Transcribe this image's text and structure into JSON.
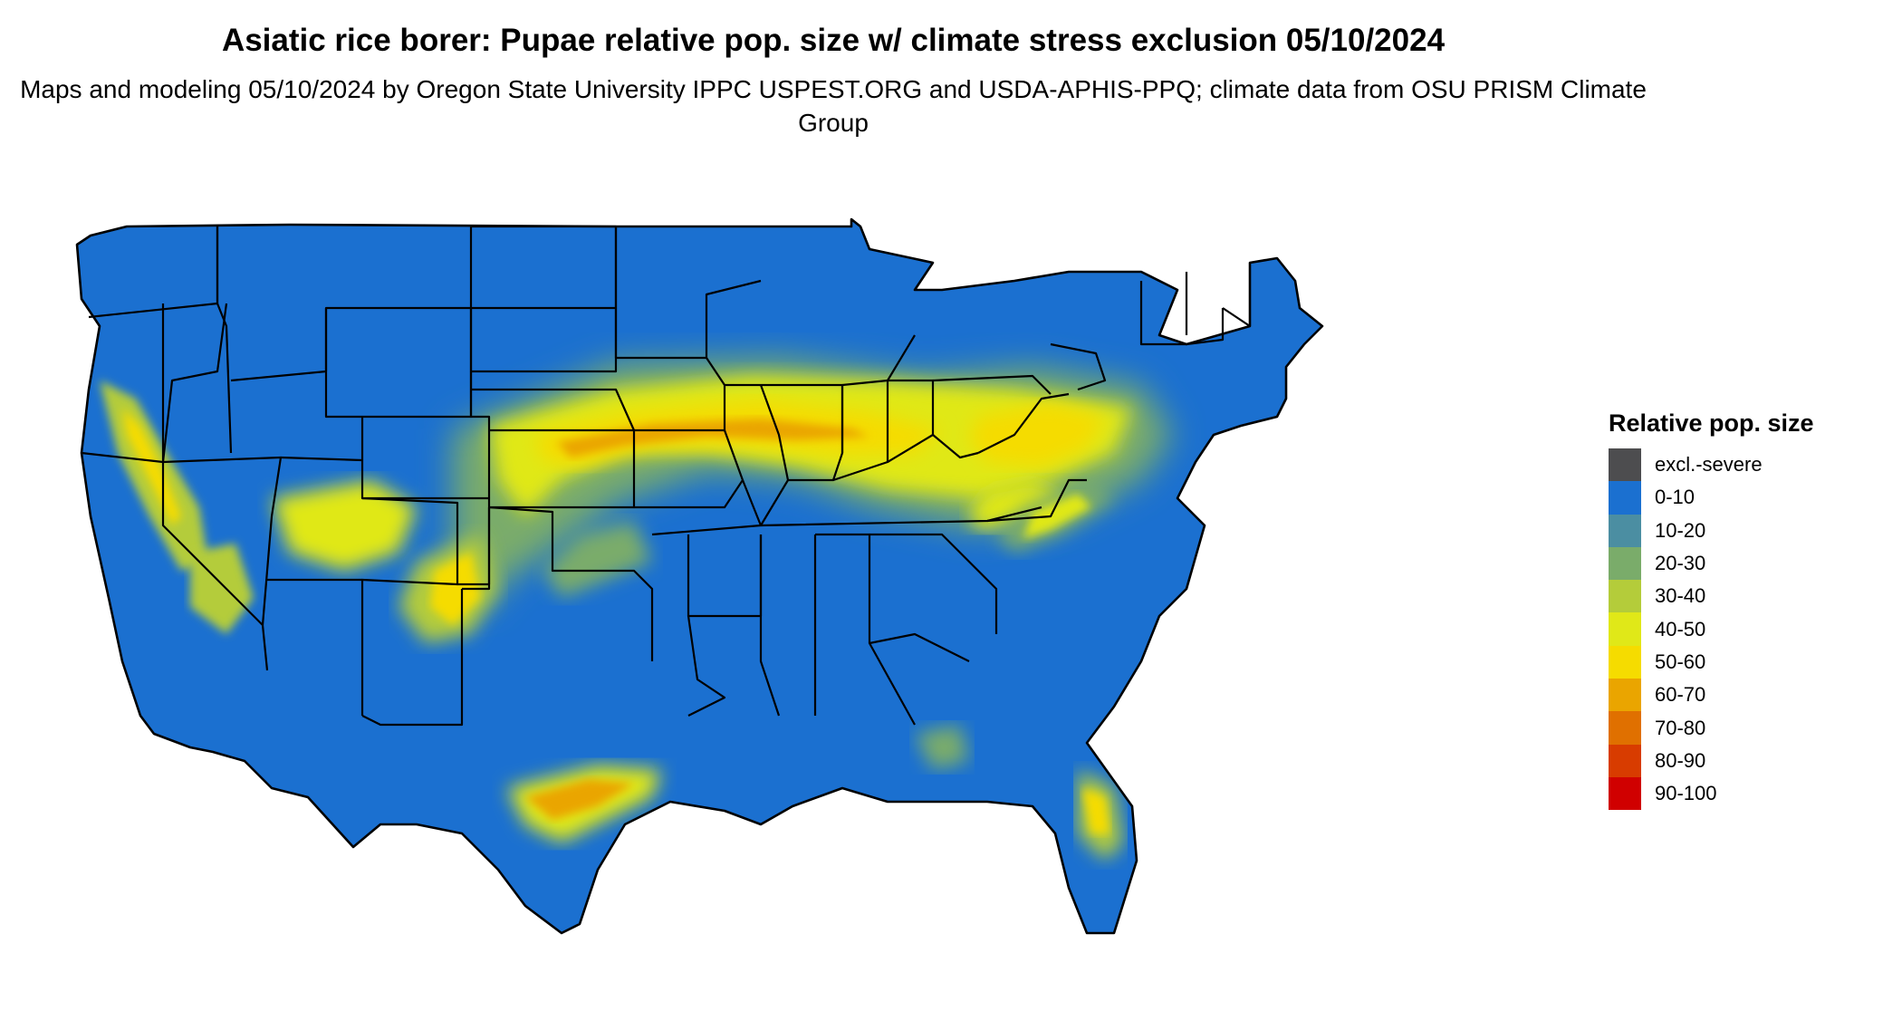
{
  "title": "Asiatic rice borer: Pupae relative pop. size w/ climate stress exclusion 05/10/2024",
  "subtitle": "Maps and modeling 05/10/2024 by Oregon State University IPPC USPEST.ORG and USDA-APHIS-PPQ; climate data from OSU PRISM Climate Group",
  "legend": {
    "title": "Relative pop. size",
    "items": [
      {
        "label": "excl.-severe",
        "color": "#4d4d4f"
      },
      {
        "label": "0-10",
        "color": "#1b70d0"
      },
      {
        "label": "10-20",
        "color": "#4b8ea2"
      },
      {
        "label": "20-30",
        "color": "#7aac6a"
      },
      {
        "label": "30-40",
        "color": "#b4cc3a"
      },
      {
        "label": "40-50",
        "color": "#e0e818"
      },
      {
        "label": "50-60",
        "color": "#f5dc00"
      },
      {
        "label": "60-70",
        "color": "#eaa500"
      },
      {
        "label": "70-80",
        "color": "#e07000"
      },
      {
        "label": "80-90",
        "color": "#d83c00"
      },
      {
        "label": "90-100",
        "color": "#d00000"
      }
    ]
  }
}
